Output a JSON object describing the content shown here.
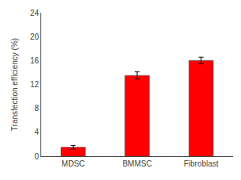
{
  "chart_data": {
    "type": "bar",
    "categories": [
      "MDSC",
      "BMMSC",
      "Fibroblast"
    ],
    "values": [
      1.5,
      13.5,
      16.0
    ],
    "errors": [
      0.3,
      0.6,
      0.55
    ],
    "color": "#ff0000",
    "ylabel": "Transfection efficiency (%)",
    "ylim": [
      0,
      24
    ],
    "yticks": [
      0,
      4,
      8,
      12,
      16,
      20,
      24
    ],
    "grid": false
  }
}
